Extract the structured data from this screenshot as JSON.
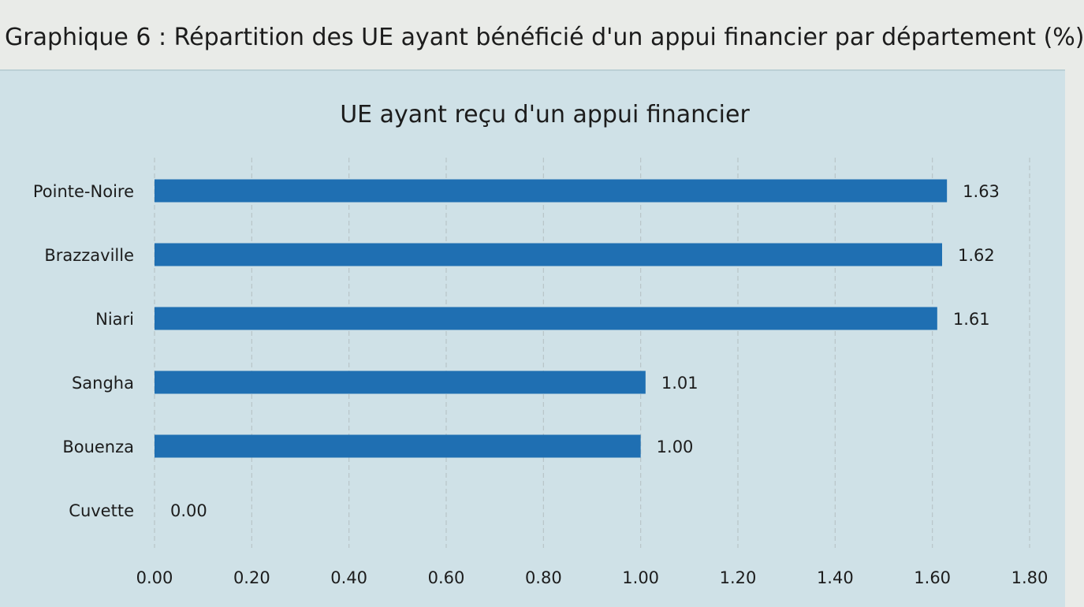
{
  "figure": {
    "caption": "Graphique 6 : Répartition des UE ayant bénéficié d'un appui financier par département (%)"
  },
  "chart_data": {
    "type": "bar",
    "orientation": "horizontal",
    "title": "UE ayant reçu d'un appui financier",
    "categories": [
      "Pointe-Noire",
      "Brazzaville",
      "Niari",
      "Sangha",
      "Bouenza",
      "Cuvette"
    ],
    "values": [
      1.63,
      1.62,
      1.61,
      1.01,
      1.0,
      0.0
    ],
    "data_labels": [
      "1.63",
      "1.62",
      "1.61",
      "1.01",
      "1.00",
      "0.00"
    ],
    "xticks": [
      0.0,
      0.2,
      0.4,
      0.6,
      0.8,
      1.0,
      1.2,
      1.4,
      1.6,
      1.8
    ],
    "xtick_labels": [
      "0.00",
      "0.20",
      "0.40",
      "0.60",
      "0.80",
      "1.00",
      "1.20",
      "1.40",
      "1.60",
      "1.80"
    ],
    "xlim": [
      0,
      1.8
    ],
    "xlabel": "",
    "ylabel": "",
    "grid": true,
    "legend": "none",
    "bar_color": "#1f6fb2"
  }
}
